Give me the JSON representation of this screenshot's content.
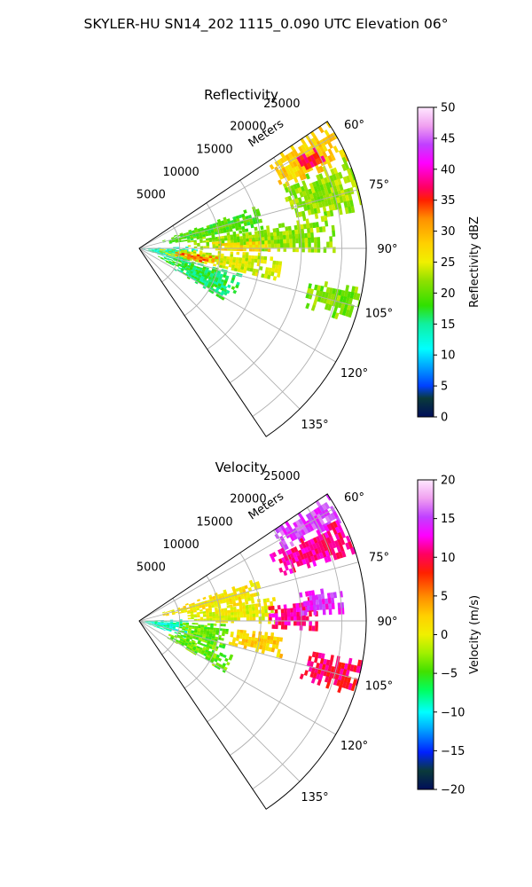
{
  "figure": {
    "suptitle": "SKYLER-HU  SN14_202  1115_0.090 UTC Elevation 06°"
  },
  "chart_data": [
    {
      "type": "heatmap",
      "projection": "polar-sector",
      "title": "Reflectivity",
      "range_axis_label": "Meters",
      "range_ticks": [
        "5000",
        "10000",
        "15000",
        "20000",
        "25000"
      ],
      "range_values": [
        5000,
        10000,
        15000,
        20000,
        25000
      ],
      "range_max": 28000,
      "azimuth_ticks": [
        "60°",
        "75°",
        "90°",
        "105°",
        "120°",
        "135°"
      ],
      "azimuth_values": [
        60,
        75,
        90,
        105,
        120,
        135
      ],
      "azimuth_range": [
        56,
        146
      ],
      "grid": true,
      "colorbar": {
        "label": "Reflectivity dBZ",
        "min": 0,
        "max": 50,
        "ticks": [
          "0",
          "5",
          "10",
          "15",
          "20",
          "25",
          "30",
          "35",
          "40",
          "45",
          "50"
        ],
        "tick_values": [
          0,
          5,
          10,
          15,
          20,
          25,
          30,
          35,
          40,
          45,
          50
        ]
      },
      "echo_regions": [
        {
          "az": [
            56,
            66
          ],
          "range": [
            19000,
            28000
          ],
          "value": 28
        },
        {
          "az": [
            60,
            64
          ],
          "range": [
            22000,
            25500
          ],
          "value": 36
        },
        {
          "az": [
            66,
            80
          ],
          "range": [
            19000,
            28000
          ],
          "value": 22
        },
        {
          "az": [
            70,
            80
          ],
          "range": [
            3000,
            15500
          ],
          "value": 19
        },
        {
          "az": [
            80,
            90
          ],
          "range": [
            6000,
            24000
          ],
          "value": 22
        },
        {
          "az": [
            85,
            91
          ],
          "range": [
            9000,
            16000
          ],
          "value": 27
        },
        {
          "az": [
            88,
            108
          ],
          "range": [
            0,
            7000
          ],
          "value": 14
        },
        {
          "az": [
            92,
            103
          ],
          "range": [
            2500,
            18000
          ],
          "value": 24
        },
        {
          "az": [
            96,
            101
          ],
          "range": [
            4500,
            9500
          ],
          "value": 33
        },
        {
          "az": [
            100,
            108
          ],
          "range": [
            21000,
            28000
          ],
          "value": 21
        },
        {
          "az": [
            104,
            116
          ],
          "range": [
            2500,
            13000
          ],
          "value": 17
        },
        {
          "az": [
            112,
            120
          ],
          "range": [
            5000,
            12000
          ],
          "value": 16
        }
      ]
    },
    {
      "type": "heatmap",
      "projection": "polar-sector",
      "title": "Velocity",
      "range_axis_label": "Meters",
      "range_ticks": [
        "5000",
        "10000",
        "15000",
        "20000",
        "25000"
      ],
      "range_values": [
        5000,
        10000,
        15000,
        20000,
        25000
      ],
      "range_max": 28000,
      "azimuth_ticks": [
        "60°",
        "75°",
        "90°",
        "105°",
        "120°",
        "135°"
      ],
      "azimuth_values": [
        60,
        75,
        90,
        105,
        120,
        135
      ],
      "azimuth_range": [
        56,
        146
      ],
      "grid": true,
      "colorbar": {
        "label": "Velocity (m/s)",
        "min": -20,
        "max": 20,
        "ticks": [
          "−20",
          "−15",
          "−10",
          "−5",
          "0",
          "5",
          "10",
          "15",
          "20"
        ],
        "tick_values": [
          -20,
          -15,
          -10,
          -5,
          0,
          5,
          10,
          15,
          20
        ]
      },
      "echo_regions": [
        {
          "az": [
            56,
            63
          ],
          "range": [
            19000,
            28000
          ],
          "value": 15
        },
        {
          "az": [
            63,
            71
          ],
          "range": [
            18000,
            28000
          ],
          "value": 11
        },
        {
          "az": [
            70,
            80
          ],
          "range": [
            3000,
            15500
          ],
          "value": 1
        },
        {
          "az": [
            80,
            90
          ],
          "range": [
            6000,
            17000
          ],
          "value": 0
        },
        {
          "az": [
            82,
            92
          ],
          "range": [
            16000,
            22000
          ],
          "value": 11
        },
        {
          "az": [
            80,
            87
          ],
          "range": [
            20000,
            25000
          ],
          "value": 14
        },
        {
          "az": [
            88,
            110
          ],
          "range": [
            0,
            6000
          ],
          "value": -9
        },
        {
          "az": [
            92,
            112
          ],
          "range": [
            5000,
            11000
          ],
          "value": -4
        },
        {
          "az": [
            95,
            103
          ],
          "range": [
            11000,
            18000
          ],
          "value": 2
        },
        {
          "az": [
            100,
            108
          ],
          "range": [
            21000,
            28000
          ],
          "value": 10
        },
        {
          "az": [
            110,
            120
          ],
          "range": [
            4000,
            12000
          ],
          "value": -4
        }
      ]
    }
  ]
}
